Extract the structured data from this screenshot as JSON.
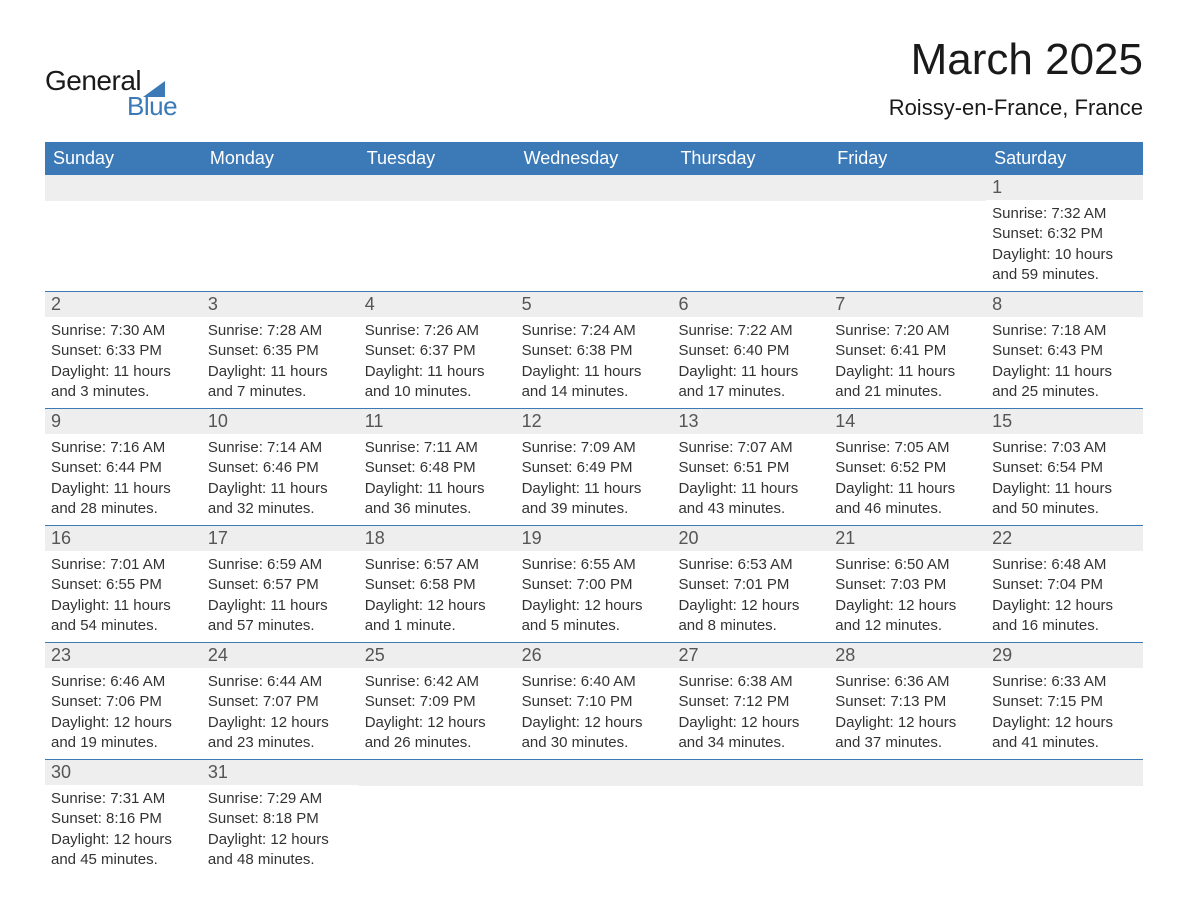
{
  "logo": {
    "text_general": "General",
    "text_blue": "Blue",
    "accent_color": "#3b79b7"
  },
  "title": "March 2025",
  "subtitle": "Roissy-en-France, France",
  "colors": {
    "header_bg": "#3b79b7",
    "header_text": "#ffffff",
    "day_number_bg": "#eeeeee",
    "day_number_text": "#555555",
    "body_text": "#333333",
    "row_separator": "#3b79b7",
    "page_bg": "#ffffff"
  },
  "typography": {
    "title_fontsize": 44,
    "subtitle_fontsize": 22,
    "header_fontsize": 18,
    "daynum_fontsize": 18,
    "content_fontsize": 15
  },
  "day_names": [
    "Sunday",
    "Monday",
    "Tuesday",
    "Wednesday",
    "Thursday",
    "Friday",
    "Saturday"
  ],
  "weeks": [
    [
      {
        "day": "",
        "sunrise": "",
        "sunset": "",
        "daylight": ""
      },
      {
        "day": "",
        "sunrise": "",
        "sunset": "",
        "daylight": ""
      },
      {
        "day": "",
        "sunrise": "",
        "sunset": "",
        "daylight": ""
      },
      {
        "day": "",
        "sunrise": "",
        "sunset": "",
        "daylight": ""
      },
      {
        "day": "",
        "sunrise": "",
        "sunset": "",
        "daylight": ""
      },
      {
        "day": "",
        "sunrise": "",
        "sunset": "",
        "daylight": ""
      },
      {
        "day": "1",
        "sunrise": "Sunrise: 7:32 AM",
        "sunset": "Sunset: 6:32 PM",
        "daylight": "Daylight: 10 hours and 59 minutes."
      }
    ],
    [
      {
        "day": "2",
        "sunrise": "Sunrise: 7:30 AM",
        "sunset": "Sunset: 6:33 PM",
        "daylight": "Daylight: 11 hours and 3 minutes."
      },
      {
        "day": "3",
        "sunrise": "Sunrise: 7:28 AM",
        "sunset": "Sunset: 6:35 PM",
        "daylight": "Daylight: 11 hours and 7 minutes."
      },
      {
        "day": "4",
        "sunrise": "Sunrise: 7:26 AM",
        "sunset": "Sunset: 6:37 PM",
        "daylight": "Daylight: 11 hours and 10 minutes."
      },
      {
        "day": "5",
        "sunrise": "Sunrise: 7:24 AM",
        "sunset": "Sunset: 6:38 PM",
        "daylight": "Daylight: 11 hours and 14 minutes."
      },
      {
        "day": "6",
        "sunrise": "Sunrise: 7:22 AM",
        "sunset": "Sunset: 6:40 PM",
        "daylight": "Daylight: 11 hours and 17 minutes."
      },
      {
        "day": "7",
        "sunrise": "Sunrise: 7:20 AM",
        "sunset": "Sunset: 6:41 PM",
        "daylight": "Daylight: 11 hours and 21 minutes."
      },
      {
        "day": "8",
        "sunrise": "Sunrise: 7:18 AM",
        "sunset": "Sunset: 6:43 PM",
        "daylight": "Daylight: 11 hours and 25 minutes."
      }
    ],
    [
      {
        "day": "9",
        "sunrise": "Sunrise: 7:16 AM",
        "sunset": "Sunset: 6:44 PM",
        "daylight": "Daylight: 11 hours and 28 minutes."
      },
      {
        "day": "10",
        "sunrise": "Sunrise: 7:14 AM",
        "sunset": "Sunset: 6:46 PM",
        "daylight": "Daylight: 11 hours and 32 minutes."
      },
      {
        "day": "11",
        "sunrise": "Sunrise: 7:11 AM",
        "sunset": "Sunset: 6:48 PM",
        "daylight": "Daylight: 11 hours and 36 minutes."
      },
      {
        "day": "12",
        "sunrise": "Sunrise: 7:09 AM",
        "sunset": "Sunset: 6:49 PM",
        "daylight": "Daylight: 11 hours and 39 minutes."
      },
      {
        "day": "13",
        "sunrise": "Sunrise: 7:07 AM",
        "sunset": "Sunset: 6:51 PM",
        "daylight": "Daylight: 11 hours and 43 minutes."
      },
      {
        "day": "14",
        "sunrise": "Sunrise: 7:05 AM",
        "sunset": "Sunset: 6:52 PM",
        "daylight": "Daylight: 11 hours and 46 minutes."
      },
      {
        "day": "15",
        "sunrise": "Sunrise: 7:03 AM",
        "sunset": "Sunset: 6:54 PM",
        "daylight": "Daylight: 11 hours and 50 minutes."
      }
    ],
    [
      {
        "day": "16",
        "sunrise": "Sunrise: 7:01 AM",
        "sunset": "Sunset: 6:55 PM",
        "daylight": "Daylight: 11 hours and 54 minutes."
      },
      {
        "day": "17",
        "sunrise": "Sunrise: 6:59 AM",
        "sunset": "Sunset: 6:57 PM",
        "daylight": "Daylight: 11 hours and 57 minutes."
      },
      {
        "day": "18",
        "sunrise": "Sunrise: 6:57 AM",
        "sunset": "Sunset: 6:58 PM",
        "daylight": "Daylight: 12 hours and 1 minute."
      },
      {
        "day": "19",
        "sunrise": "Sunrise: 6:55 AM",
        "sunset": "Sunset: 7:00 PM",
        "daylight": "Daylight: 12 hours and 5 minutes."
      },
      {
        "day": "20",
        "sunrise": "Sunrise: 6:53 AM",
        "sunset": "Sunset: 7:01 PM",
        "daylight": "Daylight: 12 hours and 8 minutes."
      },
      {
        "day": "21",
        "sunrise": "Sunrise: 6:50 AM",
        "sunset": "Sunset: 7:03 PM",
        "daylight": "Daylight: 12 hours and 12 minutes."
      },
      {
        "day": "22",
        "sunrise": "Sunrise: 6:48 AM",
        "sunset": "Sunset: 7:04 PM",
        "daylight": "Daylight: 12 hours and 16 minutes."
      }
    ],
    [
      {
        "day": "23",
        "sunrise": "Sunrise: 6:46 AM",
        "sunset": "Sunset: 7:06 PM",
        "daylight": "Daylight: 12 hours and 19 minutes."
      },
      {
        "day": "24",
        "sunrise": "Sunrise: 6:44 AM",
        "sunset": "Sunset: 7:07 PM",
        "daylight": "Daylight: 12 hours and 23 minutes."
      },
      {
        "day": "25",
        "sunrise": "Sunrise: 6:42 AM",
        "sunset": "Sunset: 7:09 PM",
        "daylight": "Daylight: 12 hours and 26 minutes."
      },
      {
        "day": "26",
        "sunrise": "Sunrise: 6:40 AM",
        "sunset": "Sunset: 7:10 PM",
        "daylight": "Daylight: 12 hours and 30 minutes."
      },
      {
        "day": "27",
        "sunrise": "Sunrise: 6:38 AM",
        "sunset": "Sunset: 7:12 PM",
        "daylight": "Daylight: 12 hours and 34 minutes."
      },
      {
        "day": "28",
        "sunrise": "Sunrise: 6:36 AM",
        "sunset": "Sunset: 7:13 PM",
        "daylight": "Daylight: 12 hours and 37 minutes."
      },
      {
        "day": "29",
        "sunrise": "Sunrise: 6:33 AM",
        "sunset": "Sunset: 7:15 PM",
        "daylight": "Daylight: 12 hours and 41 minutes."
      }
    ],
    [
      {
        "day": "30",
        "sunrise": "Sunrise: 7:31 AM",
        "sunset": "Sunset: 8:16 PM",
        "daylight": "Daylight: 12 hours and 45 minutes."
      },
      {
        "day": "31",
        "sunrise": "Sunrise: 7:29 AM",
        "sunset": "Sunset: 8:18 PM",
        "daylight": "Daylight: 12 hours and 48 minutes."
      },
      {
        "day": "",
        "sunrise": "",
        "sunset": "",
        "daylight": ""
      },
      {
        "day": "",
        "sunrise": "",
        "sunset": "",
        "daylight": ""
      },
      {
        "day": "",
        "sunrise": "",
        "sunset": "",
        "daylight": ""
      },
      {
        "day": "",
        "sunrise": "",
        "sunset": "",
        "daylight": ""
      },
      {
        "day": "",
        "sunrise": "",
        "sunset": "",
        "daylight": ""
      }
    ]
  ]
}
